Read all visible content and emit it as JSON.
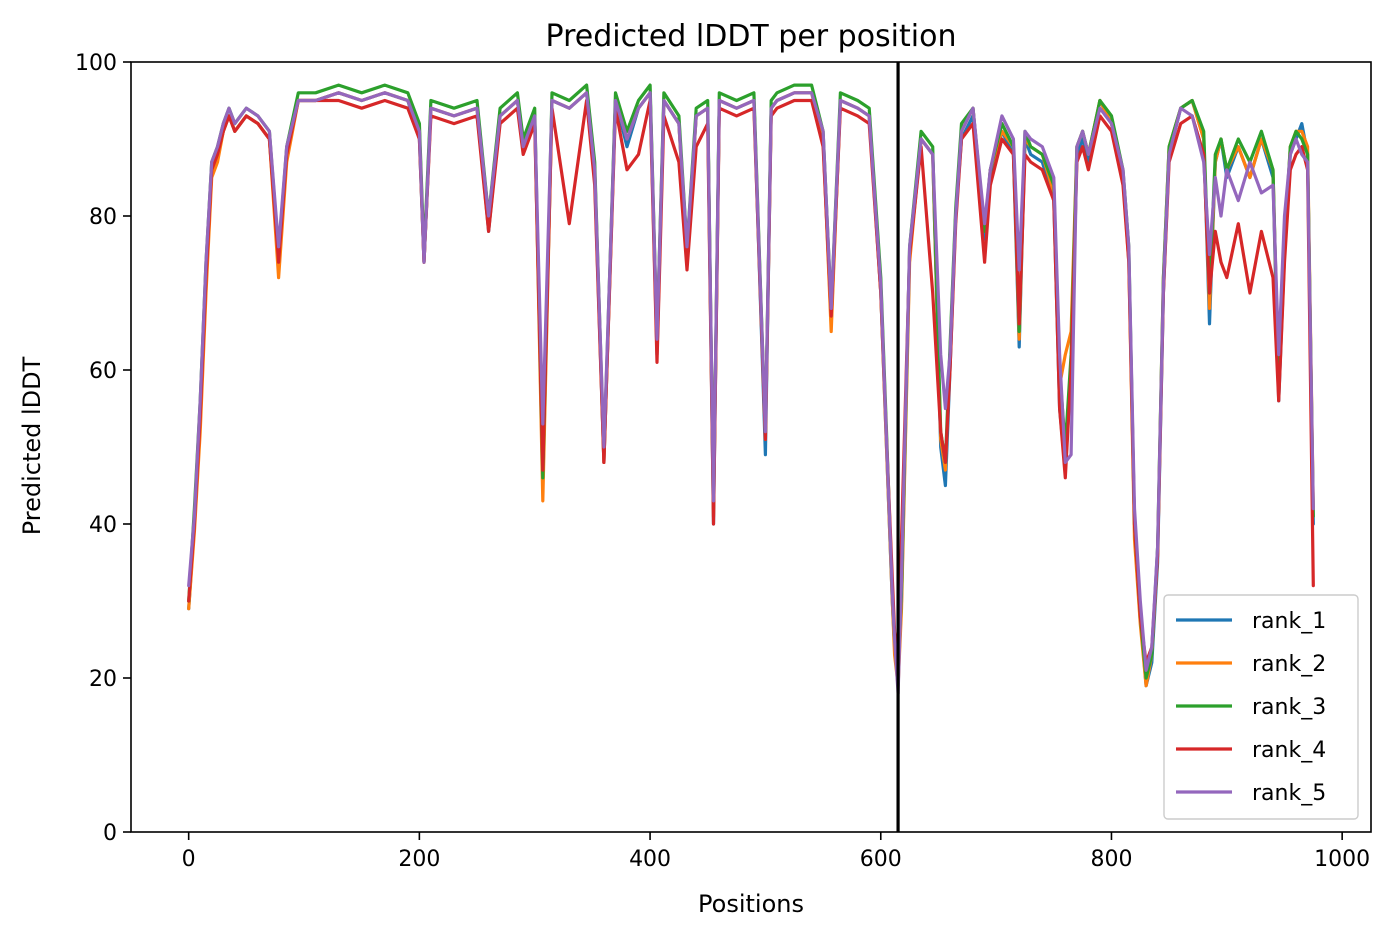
{
  "chart_data": {
    "type": "line",
    "title": "Predicted lDDT per position",
    "xlabel": "Positions",
    "ylabel": "Predicted lDDT",
    "xlim": [
      -50,
      1025
    ],
    "ylim": [
      0,
      100
    ],
    "xticks": [
      0,
      200,
      400,
      600,
      800,
      1000
    ],
    "yticks": [
      0,
      20,
      40,
      60,
      80,
      100
    ],
    "grid": false,
    "legend_position": "lower right",
    "chain_break": 615,
    "x_points": [
      0,
      5,
      10,
      15,
      20,
      25,
      30,
      35,
      40,
      50,
      60,
      70,
      78,
      85,
      95,
      110,
      130,
      150,
      170,
      190,
      200,
      204,
      210,
      230,
      250,
      260,
      270,
      285,
      290,
      300,
      307,
      315,
      330,
      345,
      352,
      360,
      370,
      380,
      390,
      400,
      406,
      412,
      425,
      432,
      440,
      450,
      455,
      460,
      475,
      490,
      500,
      505,
      510,
      525,
      540,
      550,
      557,
      565,
      580,
      590,
      600,
      605,
      610,
      612,
      615,
      618,
      625,
      635,
      645,
      652,
      656,
      660,
      665,
      670,
      680,
      690,
      695,
      705,
      715,
      720,
      725,
      730,
      740,
      750,
      755,
      760,
      765,
      770,
      775,
      780,
      790,
      800,
      810,
      815,
      820,
      825,
      830,
      835,
      840,
      845,
      850,
      860,
      870,
      880,
      885,
      890,
      895,
      900,
      910,
      920,
      930,
      940,
      945,
      950,
      955,
      960,
      965,
      970,
      975
    ],
    "series": [
      {
        "name": "rank_1",
        "color": "#1f77b4",
        "values": [
          29,
          40,
          55,
          73,
          86,
          88,
          91,
          93,
          91,
          93,
          92,
          90,
          74,
          88,
          95,
          95,
          96,
          95,
          96,
          95,
          90,
          74,
          94,
          93,
          94,
          78,
          93,
          95,
          89,
          93,
          45,
          95,
          94,
          96,
          85,
          48,
          95,
          89,
          94,
          96,
          62,
          95,
          92,
          74,
          93,
          94,
          40,
          95,
          94,
          95,
          49,
          94,
          95,
          96,
          96,
          90,
          66,
          95,
          94,
          93,
          70,
          50,
          30,
          24,
          20,
          30,
          75,
          90,
          88,
          50,
          45,
          60,
          80,
          90,
          93,
          77,
          85,
          91,
          88,
          63,
          90,
          88,
          87,
          82,
          55,
          47,
          60,
          88,
          90,
          87,
          95,
          92,
          85,
          75,
          40,
          28,
          19,
          22,
          35,
          70,
          88,
          94,
          95,
          90,
          66,
          87,
          90,
          85,
          89,
          85,
          90,
          85,
          56,
          75,
          88,
          90,
          92,
          88,
          40
        ]
      },
      {
        "name": "rank_2",
        "color": "#ff7f0e",
        "values": [
          29,
          39,
          52,
          70,
          85,
          87,
          91,
          93,
          91,
          93,
          92,
          90,
          72,
          87,
          95,
          95,
          96,
          95,
          96,
          95,
          91,
          74,
          94,
          93,
          94,
          79,
          93,
          95,
          89,
          93,
          43,
          95,
          94,
          96,
          86,
          48,
          95,
          90,
          94,
          96,
          63,
          95,
          92,
          75,
          93,
          94,
          41,
          95,
          94,
          95,
          51,
          94,
          95,
          96,
          96,
          90,
          65,
          95,
          94,
          93,
          70,
          50,
          30,
          23,
          19,
          29,
          74,
          90,
          88,
          51,
          47,
          62,
          80,
          91,
          94,
          78,
          86,
          91,
          89,
          64,
          90,
          89,
          88,
          83,
          58,
          62,
          65,
          89,
          91,
          88,
          95,
          92,
          85,
          74,
          38,
          27,
          19,
          23,
          36,
          72,
          89,
          94,
          95,
          90,
          68,
          87,
          90,
          86,
          89,
          85,
          90,
          86,
          57,
          76,
          89,
          91,
          91,
          89,
          42
        ]
      },
      {
        "name": "rank_3",
        "color": "#2ca02c",
        "values": [
          30,
          42,
          56,
          74,
          87,
          89,
          92,
          94,
          92,
          94,
          93,
          91,
          75,
          89,
          96,
          96,
          97,
          96,
          97,
          96,
          92,
          75,
          95,
          94,
          95,
          80,
          94,
          96,
          90,
          94,
          46,
          96,
          95,
          97,
          87,
          49,
          96,
          91,
          95,
          97,
          64,
          96,
          93,
          76,
          94,
          95,
          42,
          96,
          95,
          96,
          52,
          95,
          96,
          97,
          97,
          91,
          68,
          96,
          95,
          94,
          72,
          52,
          31,
          25,
          21,
          31,
          76,
          91,
          89,
          52,
          48,
          63,
          81,
          92,
          94,
          78,
          86,
          92,
          89,
          65,
          91,
          89,
          88,
          84,
          60,
          50,
          62,
          89,
          91,
          88,
          95,
          93,
          86,
          76,
          40,
          28,
          20,
          23,
          37,
          72,
          89,
          94,
          95,
          91,
          70,
          88,
          90,
          86,
          90,
          87,
          91,
          86,
          58,
          77,
          89,
          91,
          90,
          88,
          41
        ]
      },
      {
        "name": "rank_4",
        "color": "#d62728",
        "values": [
          30,
          40,
          54,
          72,
          86,
          88,
          91,
          93,
          91,
          93,
          92,
          90,
          74,
          88,
          95,
          95,
          95,
          94,
          95,
          94,
          90,
          74,
          93,
          92,
          93,
          78,
          92,
          94,
          88,
          92,
          47,
          94,
          79,
          95,
          84,
          48,
          94,
          86,
          88,
          95,
          61,
          93,
          87,
          73,
          89,
          92,
          40,
          94,
          93,
          94,
          51,
          93,
          94,
          95,
          95,
          89,
          67,
          94,
          93,
          92,
          70,
          51,
          33,
          26,
          22,
          38,
          75,
          89,
          70,
          52,
          48,
          60,
          79,
          90,
          92,
          74,
          84,
          90,
          88,
          66,
          88,
          87,
          86,
          82,
          55,
          46,
          60,
          87,
          89,
          86,
          93,
          91,
          84,
          74,
          40,
          28,
          22,
          24,
          36,
          70,
          87,
          92,
          93,
          88,
          70,
          78,
          74,
          72,
          79,
          70,
          78,
          72,
          56,
          74,
          86,
          88,
          89,
          86,
          32
        ]
      },
      {
        "name": "rank_5",
        "color": "#9467bd",
        "values": [
          32,
          41,
          56,
          74,
          87,
          89,
          92,
          94,
          92,
          94,
          93,
          91,
          76,
          89,
          95,
          95,
          96,
          95,
          96,
          95,
          91,
          74,
          94,
          93,
          94,
          80,
          93,
          95,
          89,
          93,
          53,
          95,
          94,
          96,
          86,
          50,
          95,
          90,
          94,
          96,
          64,
          95,
          92,
          76,
          93,
          94,
          43,
          95,
          94,
          95,
          52,
          94,
          95,
          96,
          96,
          91,
          68,
          95,
          94,
          93,
          71,
          51,
          31,
          25,
          18,
          33,
          76,
          90,
          88,
          62,
          55,
          62,
          80,
          91,
          94,
          79,
          86,
          93,
          90,
          73,
          91,
          90,
          89,
          85,
          62,
          48,
          49,
          89,
          91,
          88,
          94,
          92,
          86,
          76,
          42,
          30,
          21,
          24,
          37,
          71,
          88,
          94,
          93,
          87,
          75,
          85,
          80,
          86,
          82,
          87,
          83,
          84,
          62,
          80,
          88,
          90,
          88,
          87,
          42
        ]
      }
    ]
  }
}
